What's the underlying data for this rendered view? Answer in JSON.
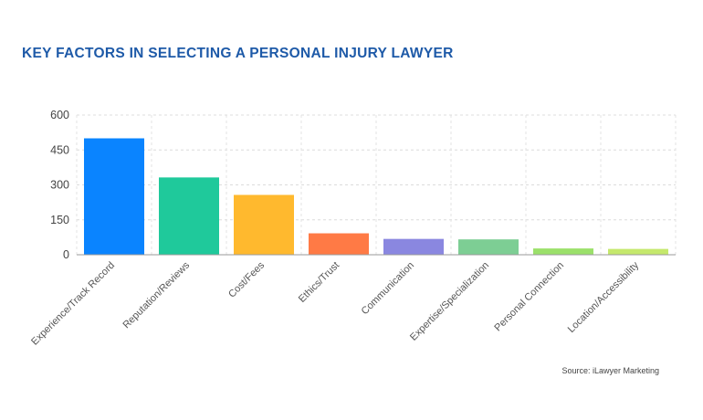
{
  "chart_data": {
    "type": "bar",
    "title": "KEY FACTORS IN SELECTING A PERSONAL INJURY LAWYER",
    "categories": [
      "Experience/Track Record",
      "Reputation/Reviews",
      "Cost/Fees",
      "Ethics/Trust",
      "Communication",
      "Expertise/Specialization",
      "Personal Connection",
      "Location/Accessibility"
    ],
    "values": [
      500,
      332,
      257,
      92,
      68,
      66,
      27,
      25
    ],
    "colors": [
      "#0a84ff",
      "#1fc99b",
      "#ffb92e",
      "#ff7a45",
      "#8a87e0",
      "#7dce94",
      "#9be06a",
      "#c5e86c"
    ],
    "ylim": [
      0,
      600
    ],
    "yticks": [
      0,
      150,
      300,
      450,
      600
    ],
    "grid": true,
    "source": "Source: iLawyer Marketing"
  }
}
